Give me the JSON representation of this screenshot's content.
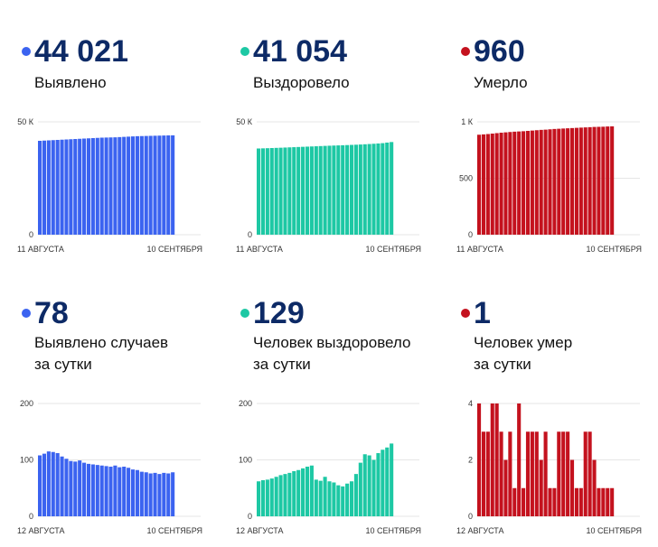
{
  "colors": {
    "blue": "#3b63f0",
    "green": "#1dc8a4",
    "red": "#c4121e",
    "number": "#0d2a66"
  },
  "panels": [
    {
      "id": "cases-total",
      "color": "#3b63f0",
      "value": "44 021",
      "label_lines": [
        "Выявлено"
      ]
    },
    {
      "id": "recovered-total",
      "color": "#1dc8a4",
      "value": "41 054",
      "label_lines": [
        "Выздоровело"
      ]
    },
    {
      "id": "deaths-total",
      "color": "#c4121e",
      "value": "960",
      "label_lines": [
        "Умерло"
      ]
    },
    {
      "id": "cases-daily",
      "color": "#3b63f0",
      "value": "78",
      "label_lines": [
        "Выявлено случаев",
        "за сутки"
      ]
    },
    {
      "id": "recovered-daily",
      "color": "#1dc8a4",
      "value": "129",
      "label_lines": [
        "Человек выздоровело",
        "за сутки"
      ]
    },
    {
      "id": "deaths-daily",
      "color": "#c4121e",
      "value": "1",
      "label_lines": [
        "Человек умер",
        "за сутки"
      ]
    }
  ],
  "chart_data": [
    {
      "type": "bar",
      "panel": "cases-total",
      "color": "#3b63f0",
      "x_start": "11 АВГУСТА",
      "x_end": "10 СЕНТЯБРЯ",
      "ylim": [
        0,
        50000
      ],
      "yticks": [
        0,
        50000
      ],
      "ytick_labels": [
        "0",
        "50 К"
      ],
      "values": [
        41600,
        41700,
        41800,
        41900,
        42000,
        42100,
        42200,
        42300,
        42400,
        42500,
        42600,
        42700,
        42800,
        42900,
        43000,
        43050,
        43100,
        43150,
        43250,
        43350,
        43450,
        43550,
        43650,
        43700,
        43750,
        43800,
        43850,
        43900,
        43950,
        44000,
        44021
      ]
    },
    {
      "type": "bar",
      "panel": "recovered-total",
      "color": "#1dc8a4",
      "x_start": "11 АВГУСТА",
      "x_end": "10 СЕНТЯБРЯ",
      "ylim": [
        0,
        50000
      ],
      "yticks": [
        0,
        50000
      ],
      "ytick_labels": [
        "0",
        "50 К"
      ],
      "values": [
        38200,
        38260,
        38330,
        38400,
        38470,
        38540,
        38620,
        38700,
        38780,
        38860,
        38940,
        39020,
        39100,
        39180,
        39270,
        39350,
        39430,
        39500,
        39570,
        39640,
        39710,
        39790,
        39870,
        39960,
        40070,
        40180,
        40290,
        40420,
        40560,
        40810,
        41054
      ]
    },
    {
      "type": "bar",
      "panel": "deaths-total",
      "color": "#c4121e",
      "x_start": "11 АВГУСТА",
      "x_end": "10 СЕНТЯБРЯ",
      "ylim": [
        0,
        1000
      ],
      "yticks": [
        0,
        500,
        1000
      ],
      "ytick_labels": [
        "0",
        "500",
        "1 К"
      ],
      "values": [
        886,
        889,
        892,
        896,
        900,
        904,
        907,
        910,
        913,
        915,
        917,
        920,
        923,
        926,
        929,
        931,
        934,
        937,
        939,
        941,
        943,
        945,
        947,
        949,
        951,
        953,
        955,
        956,
        957,
        959,
        960
      ]
    },
    {
      "type": "bar",
      "panel": "cases-daily",
      "color": "#3b63f0",
      "x_start": "12 АВГУСТА",
      "x_end": "10 СЕНТЯБРЯ",
      "ylim": [
        0,
        200
      ],
      "yticks": [
        0,
        100,
        200
      ],
      "ytick_labels": [
        "0",
        "100",
        "200"
      ],
      "values": [
        108,
        111,
        115,
        114,
        112,
        106,
        102,
        98,
        97,
        99,
        95,
        93,
        92,
        91,
        90,
        89,
        88,
        90,
        87,
        88,
        86,
        83,
        82,
        79,
        78,
        76,
        77,
        75,
        77,
        76,
        78
      ]
    },
    {
      "type": "bar",
      "panel": "recovered-daily",
      "color": "#1dc8a4",
      "x_start": "12 АВГУСТА",
      "x_end": "10 СЕНТЯБРЯ",
      "ylim": [
        0,
        200
      ],
      "yticks": [
        0,
        100,
        200
      ],
      "ytick_labels": [
        "0",
        "100",
        "200"
      ],
      "values": [
        62,
        64,
        65,
        67,
        70,
        73,
        75,
        77,
        80,
        82,
        85,
        88,
        90,
        65,
        63,
        70,
        62,
        60,
        55,
        53,
        58,
        62,
        75,
        95,
        110,
        108,
        100,
        112,
        118,
        122,
        129
      ]
    },
    {
      "type": "bar",
      "panel": "deaths-daily",
      "color": "#c4121e",
      "x_start": "12 АВГУСТА",
      "x_end": "10 СЕНТЯБРЯ",
      "ylim": [
        0,
        4
      ],
      "yticks": [
        0,
        2,
        4
      ],
      "ytick_labels": [
        "0",
        "2",
        "4"
      ],
      "values": [
        4,
        3,
        3,
        4,
        4,
        3,
        2,
        3,
        1,
        4,
        1,
        3,
        3,
        3,
        2,
        3,
        1,
        1,
        3,
        3,
        3,
        2,
        1,
        1,
        3,
        3,
        2,
        1,
        1,
        1,
        1
      ]
    }
  ]
}
